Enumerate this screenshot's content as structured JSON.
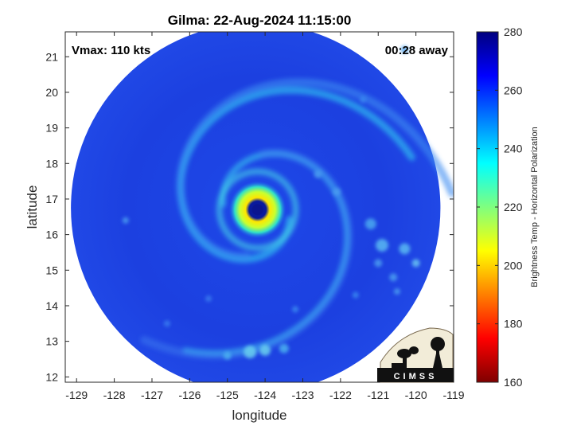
{
  "title": "Gilma: 22-Aug-2024 11:15:00",
  "vmax_label": "Vmax: 110 kts",
  "time_label": "00:28 away",
  "map": {
    "xlabel": "longitude",
    "ylabel": "latitude",
    "x_ticks": [
      -129,
      -128,
      -127,
      -126,
      -125,
      -124,
      -123,
      -122,
      -121,
      -120,
      -119
    ],
    "y_ticks": [
      12,
      13,
      14,
      15,
      16,
      17,
      18,
      19,
      20,
      21
    ],
    "xlim": [
      -129.3,
      -119
    ],
    "ylim": [
      11.85,
      21.7
    ],
    "storm_center": {
      "lon": -124.2,
      "lat": 16.7
    },
    "swath_center": {
      "lon": -124.25,
      "lat": 16.75
    },
    "swath_radius_deg": 4.9
  },
  "colorbar": {
    "label": "Brightness Temp - Horizontal Polarization",
    "ticks": [
      160,
      180,
      200,
      220,
      240,
      260,
      280
    ],
    "range": [
      160,
      280
    ],
    "colormap": [
      "#7f0000",
      "#ff0000",
      "#ff7f00",
      "#ffff00",
      "#7fff7f",
      "#00ffff",
      "#007fff",
      "#0000ff",
      "#00007f"
    ]
  },
  "logo": {
    "text": "CIMSS"
  },
  "colors": {
    "background": "#ffffff",
    "swath_base": "#1c3fe0"
  }
}
